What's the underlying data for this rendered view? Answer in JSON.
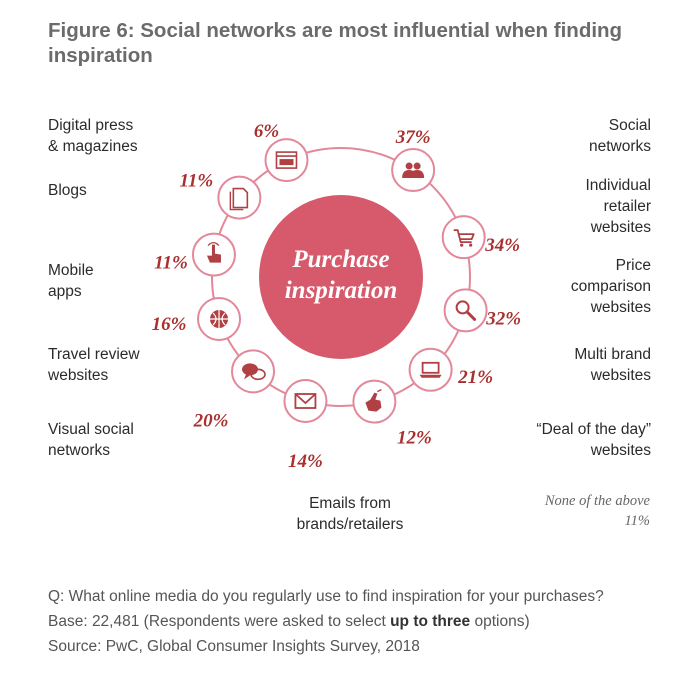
{
  "title": "Figure 6: Social networks are most influential when finding inspiration",
  "center": {
    "line1": "Purchase",
    "line2": "inspiration"
  },
  "colors": {
    "accent": "#a8302e",
    "center_fill": "#d65a6c",
    "ring": "#e3889a",
    "icon": "#b04043"
  },
  "none_of_above": {
    "label": "None of the above",
    "value": "11%"
  },
  "chart_data": {
    "type": "radial-infographic",
    "title": "Figure 6: Social networks are most influential when finding inspiration",
    "center_label": "Purchase inspiration",
    "items": [
      {
        "label": "Social networks",
        "value": 37,
        "display": "37%",
        "icon": "people-icon"
      },
      {
        "label": "Individual retailer websites",
        "value": 34,
        "display": "34%",
        "icon": "shopping-cart-icon"
      },
      {
        "label": "Price comparison websites",
        "value": 32,
        "display": "32%",
        "icon": "magnifier-icon"
      },
      {
        "label": "Multi brand websites",
        "value": 21,
        "display": "21%",
        "icon": "laptop-icon"
      },
      {
        "label": "“Deal of the day” websites",
        "value": 12,
        "display": "12%",
        "icon": "hand-pointer-icon"
      },
      {
        "label": "Emails from brands/retailers",
        "value": 14,
        "display": "14%",
        "icon": "envelope-icon"
      },
      {
        "label": "Visual social networks",
        "value": 20,
        "display": "20%",
        "icon": "speech-bubbles-icon"
      },
      {
        "label": "Travel review websites",
        "value": 16,
        "display": "16%",
        "icon": "globe-icon"
      },
      {
        "label": "Mobile apps",
        "value": 11,
        "display": "11%",
        "icon": "touch-hand-icon"
      },
      {
        "label": "Blogs",
        "value": 11,
        "display": "11%",
        "icon": "document-icon"
      },
      {
        "label": "Digital press & magazines",
        "value": 6,
        "display": "6%",
        "icon": "browser-window-icon"
      }
    ],
    "other": {
      "label": "None of the above",
      "value": 11,
      "display": "11%"
    }
  },
  "labels": {
    "social": [
      "Social",
      "networks"
    ],
    "retailer": [
      "Individual",
      "retailer",
      "websites"
    ],
    "price": [
      "Price",
      "comparison",
      "websites"
    ],
    "multibrand": [
      "Multi brand",
      "websites"
    ],
    "deal": [
      "“Deal of the day”",
      "websites"
    ],
    "emails": [
      "Emails from",
      "brands/retailers"
    ],
    "visual": [
      "Visual social",
      "networks"
    ],
    "travel": [
      "Travel review",
      "websites"
    ],
    "mobile": [
      "Mobile",
      "apps"
    ],
    "blogs": [
      "Blogs"
    ],
    "press": [
      "Digital press",
      "& magazines"
    ]
  },
  "notes": {
    "question": "Q: What online media do you regularly use to find inspiration for your purchases?",
    "base_prefix": "Base: 22,481 (Respondents were asked to select ",
    "base_bold": "up to three",
    "base_suffix": " options)",
    "source": "Source: PwC, Global Consumer Insights Survey, 2018"
  }
}
